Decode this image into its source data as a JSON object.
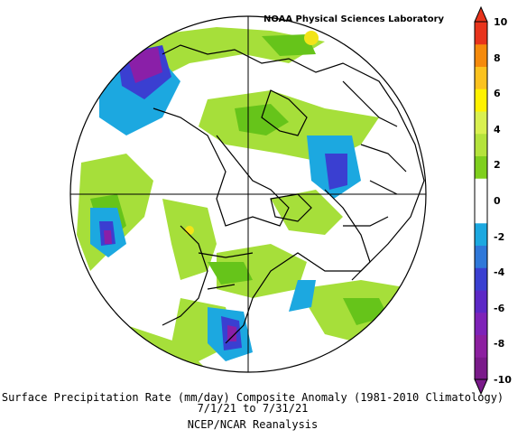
{
  "credit": "NOAA Physical Sciences Laboratory",
  "caption": {
    "line1": "Surface Precipitation Rate (mm/day) Composite Anomaly (1981-2010 Climatology)",
    "line2": "7/1/21  to 7/31/21",
    "line3": "NCEP/NCAR Reanalysis"
  },
  "colorbar": {
    "ticks": [
      "10",
      "8",
      "6",
      "4",
      "2",
      "0",
      "-2",
      "-4",
      "-6",
      "-8",
      "-10"
    ],
    "colors": [
      "#e8341c",
      "#f58a0c",
      "#fbc21e",
      "#fff200",
      "#d9f050",
      "#b4e33c",
      "#7fcf1e",
      "#ffffff",
      "#ffffff",
      "#1ca8e0",
      "#2f78d9",
      "#3a3fd1",
      "#5c28c6",
      "#7e22b8",
      "#8c1fa0",
      "#7a1a8a"
    ]
  },
  "colors": {
    "wet_strong": "#8a1fa8",
    "wet_mid": "#3a3fd1",
    "wet_light": "#1ca8e0",
    "dry_light": "#a6df3a",
    "dry_mid": "#66c41a",
    "dry_strong": "#f2e418"
  }
}
